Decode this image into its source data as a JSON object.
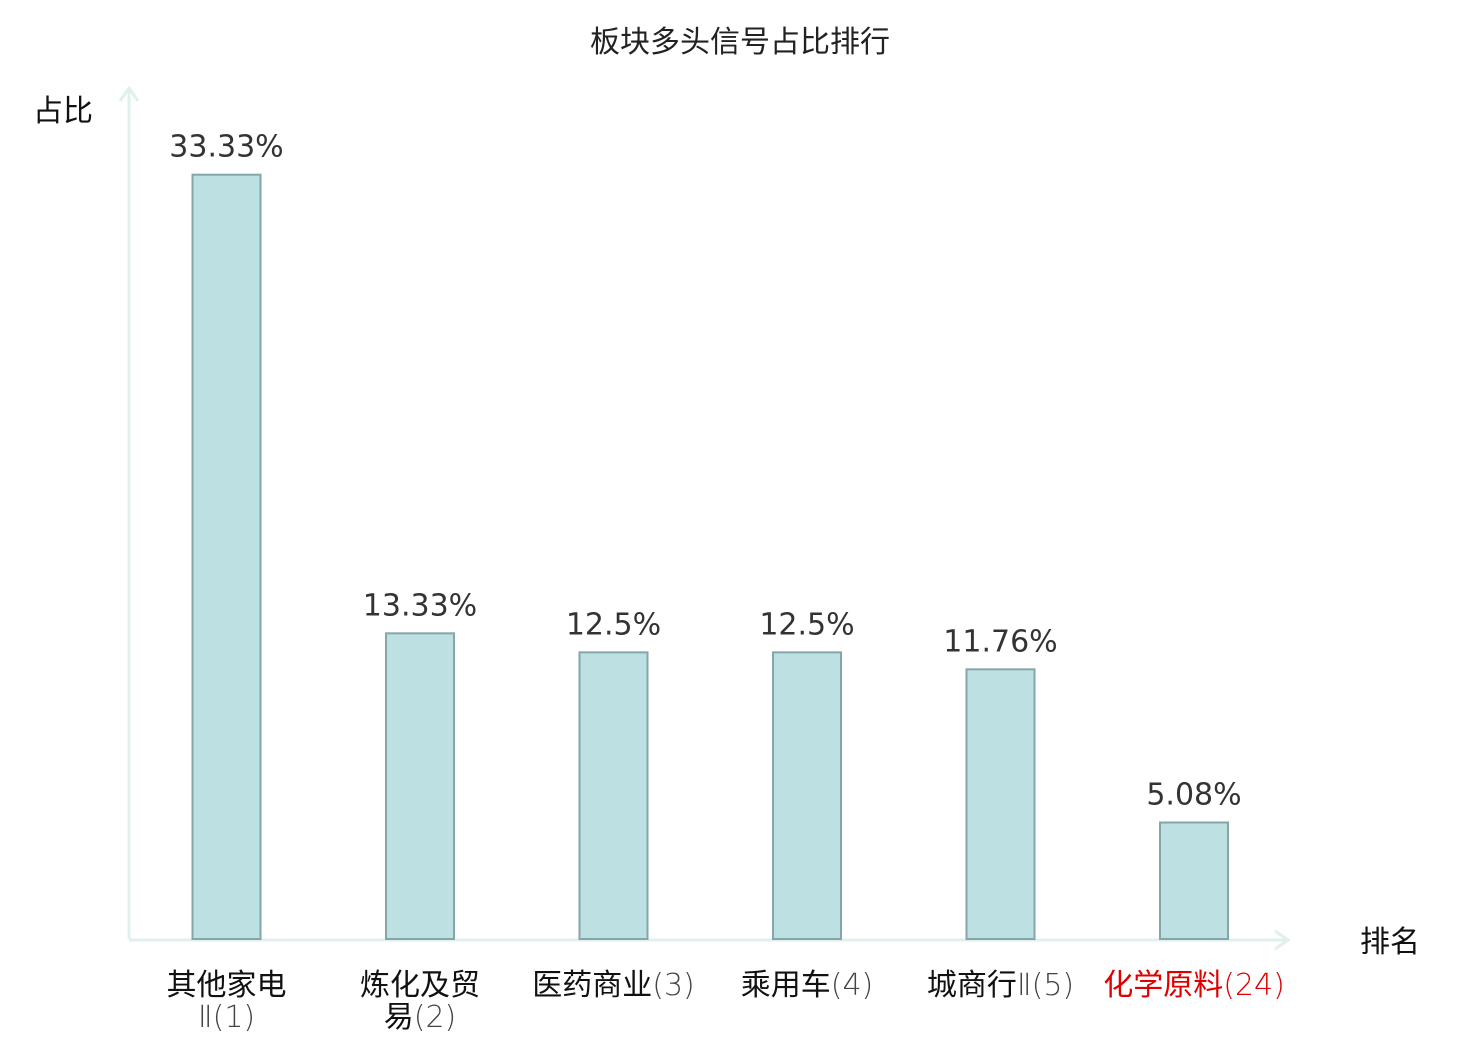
{
  "chart_data": {
    "type": "bar",
    "title": "板块多头信号占比排行",
    "ylabel": "占比",
    "xlabel": "排名",
    "ylim": [
      0,
      36.5
    ],
    "grid": false,
    "legend": "none",
    "value_suffix": "%",
    "categories": [
      {
        "lines": [
          {
            "name": "其他家电",
            "rank": ""
          },
          {
            "name": "",
            "rank": "Ⅱ(1)"
          }
        ],
        "highlight": false
      },
      {
        "lines": [
          {
            "name": "炼化及贸",
            "rank": ""
          },
          {
            "name": "易",
            "rank": "(2)"
          }
        ],
        "highlight": false
      },
      {
        "lines": [
          {
            "name": "医药商业",
            "rank": "(3)"
          }
        ],
        "highlight": false
      },
      {
        "lines": [
          {
            "name": "乘用车",
            "rank": "(4)"
          }
        ],
        "highlight": false
      },
      {
        "lines": [
          {
            "name": "城商行",
            "rank": "Ⅱ(5)"
          }
        ],
        "highlight": false
      },
      {
        "lines": [
          {
            "name": "化学原料",
            "rank": "(24)"
          }
        ],
        "highlight": true
      }
    ],
    "values": [
      33.33,
      13.33,
      12.5,
      12.5,
      11.76,
      5.08
    ],
    "value_labels": [
      "33.33%",
      "13.33%",
      "12.5%",
      "12.5%",
      "11.76%",
      "5.08%"
    ],
    "colors": {
      "bar_fill": "#bde0e3",
      "bar_stroke": "#86a5a8",
      "axis": "#dff0ee",
      "label": "#111111",
      "rank": "#444444",
      "highlight": "#e00000"
    }
  }
}
